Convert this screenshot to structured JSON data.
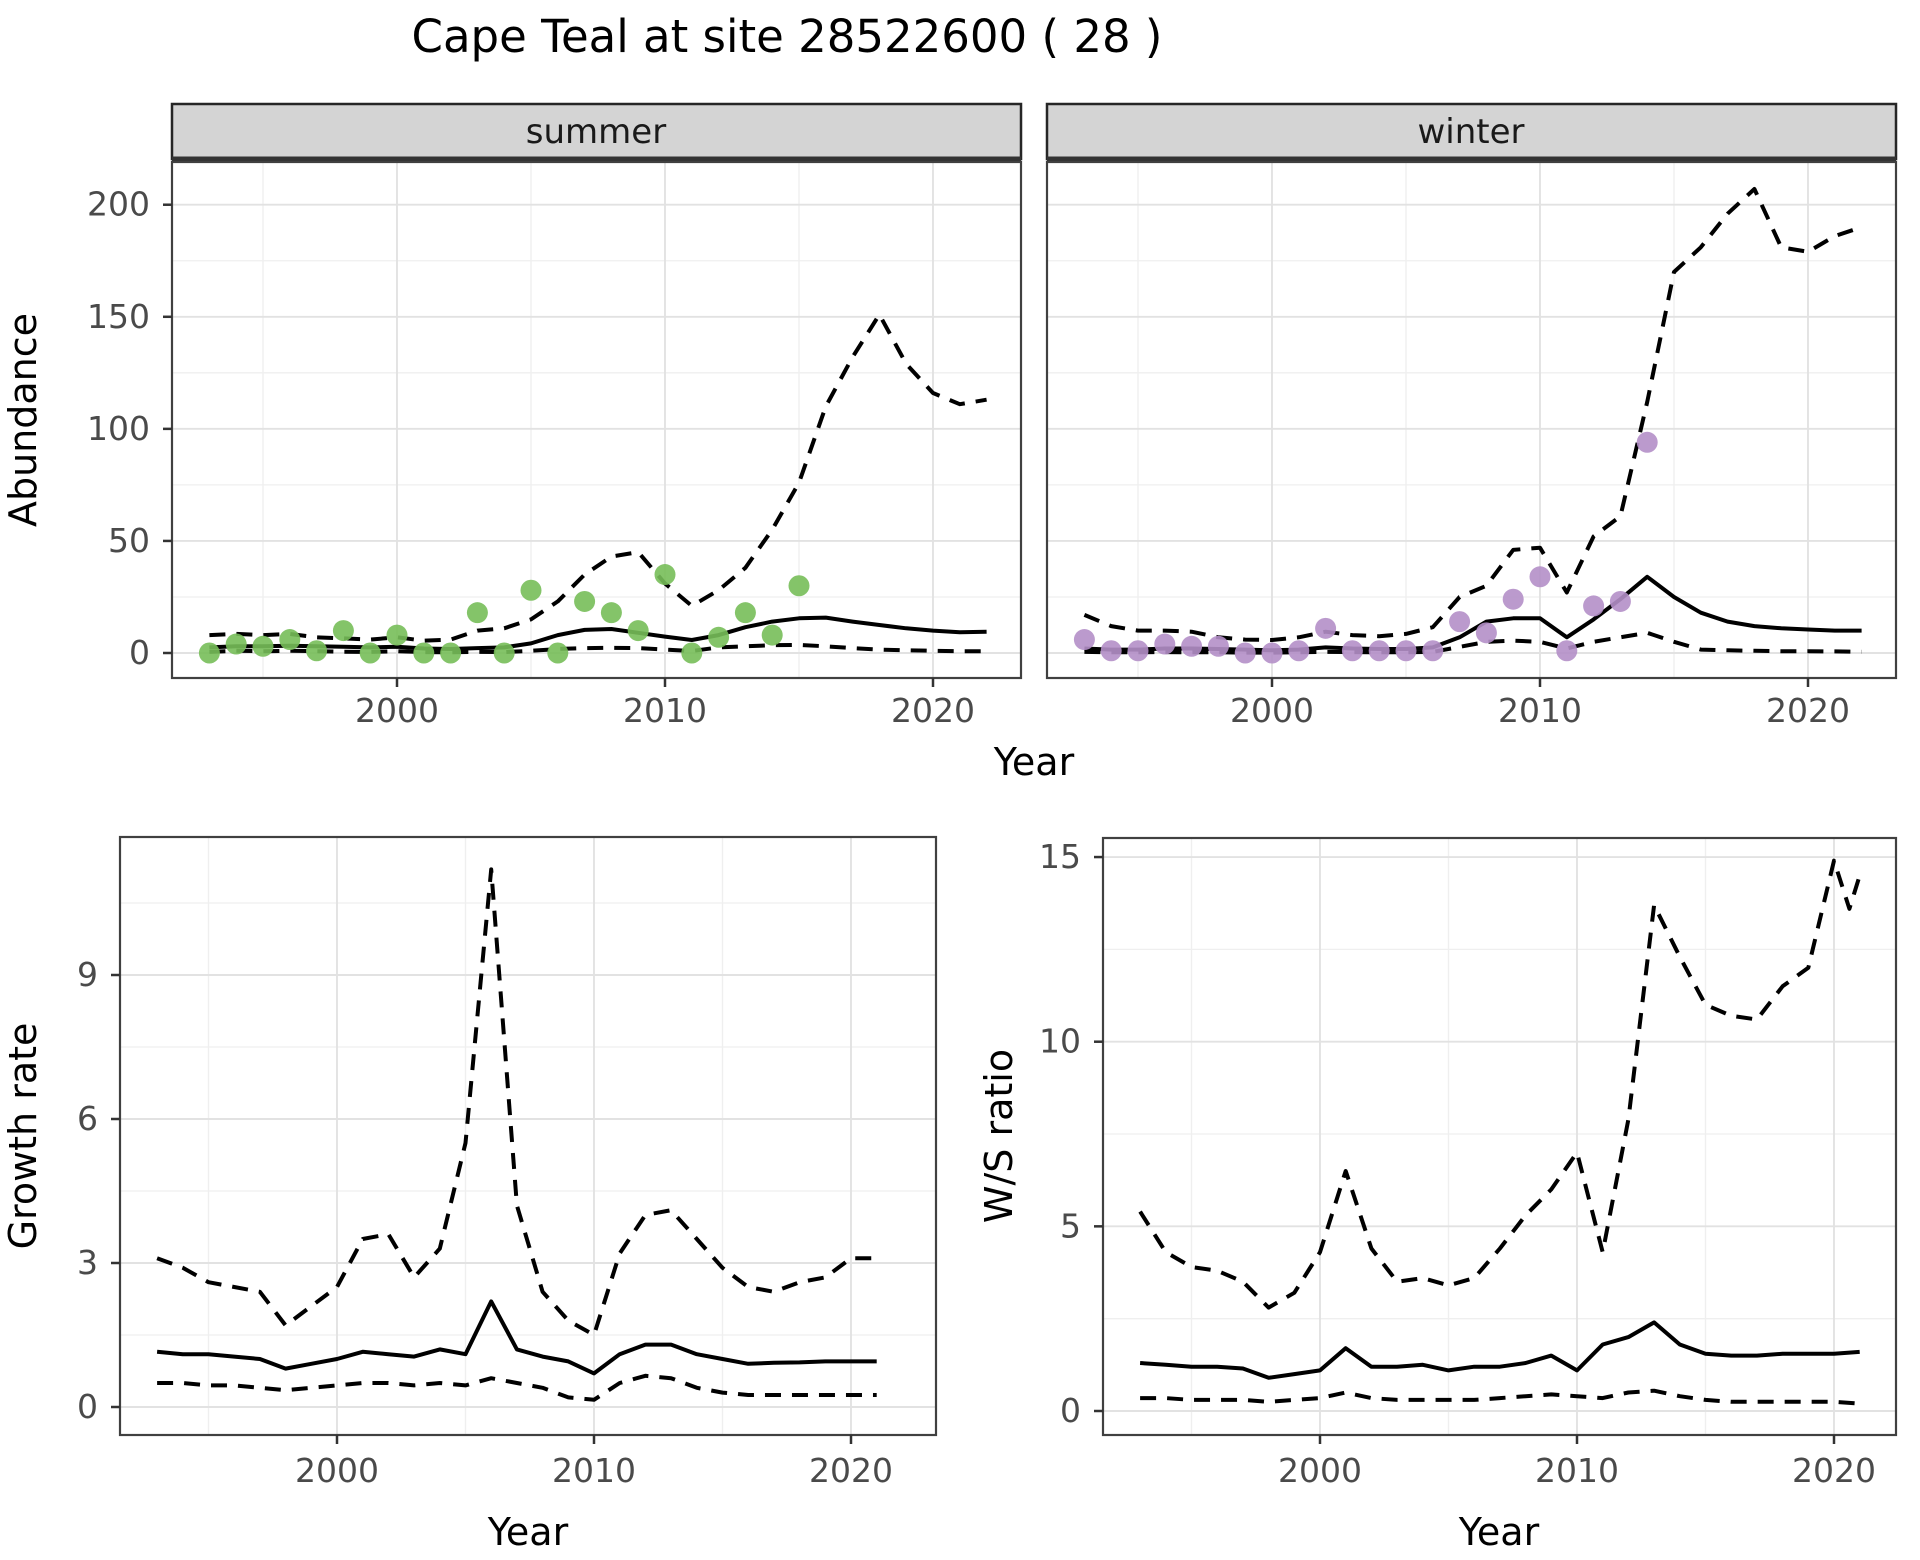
{
  "title": "Cape Teal at site 28522600 ( 28 )",
  "facet_strips": {
    "summer": "summer",
    "winter": "winter"
  },
  "axes": {
    "year_label": "Year",
    "abundance_label": "Abundance",
    "growth_label": "Growth rate",
    "ws_label": "W/S ratio"
  },
  "colors": {
    "summer_points": "#77be59",
    "winter_points": "#b48fc8",
    "line": "#000000",
    "strip_bg": "#d4d4d4",
    "grid_major": "#e2e2e2",
    "grid_minor": "#efefef"
  },
  "chart_data": [
    {
      "id": "summer",
      "type": "line",
      "facet": "summer",
      "ylabel": "Abundance",
      "xlabel": "Year",
      "x_ticks": [
        2000,
        2010,
        2020
      ],
      "x_minor": [
        1995,
        2005,
        2015
      ],
      "y_ticks": [
        0,
        50,
        100,
        150,
        200
      ],
      "y_minor": [
        25,
        75,
        125,
        175
      ],
      "ylim": [
        -11,
        219
      ],
      "series": [
        {
          "name": "lower-ci",
          "kind": "dashed",
          "x": [
            1993,
            1994,
            1995,
            1996,
            1997,
            1998,
            1999,
            2000,
            2001,
            2002,
            2003,
            2004,
            2005,
            2006,
            2007,
            2008,
            2009,
            2010,
            2011,
            2012,
            2013,
            2014,
            2015,
            2016,
            2017,
            2018,
            2019,
            2020,
            2021,
            2022
          ],
          "y": [
            0.5,
            1,
            0.8,
            1,
            0.8,
            0.6,
            0.5,
            0.8,
            0.4,
            0.3,
            0.5,
            0.4,
            1,
            1.8,
            2.2,
            2.3,
            2.2,
            1.5,
            0.9,
            2.5,
            3,
            3.5,
            3.6,
            3,
            2.2,
            1.5,
            1.2,
            1,
            0.8,
            0.8
          ]
        },
        {
          "name": "upper-ci",
          "kind": "dashed",
          "x": [
            1993,
            1994,
            1995,
            1996,
            1997,
            1998,
            1999,
            2000,
            2001,
            2002,
            2003,
            2004,
            2005,
            2006,
            2007,
            2008,
            2009,
            2010,
            2011,
            2012,
            2013,
            2014,
            2015,
            2016,
            2017,
            2018,
            2019,
            2020,
            2021,
            2022
          ],
          "y": [
            8,
            8.5,
            8,
            8.5,
            7,
            6.5,
            6,
            7,
            5.5,
            6,
            10,
            11,
            15,
            23,
            35,
            43,
            45,
            31,
            21,
            28,
            38,
            55,
            76,
            110,
            132,
            151,
            129,
            116,
            111,
            113
          ]
        },
        {
          "name": "median",
          "kind": "solid",
          "x": [
            1993,
            1994,
            1995,
            1996,
            1997,
            1998,
            1999,
            2000,
            2001,
            2002,
            2003,
            2004,
            2005,
            2006,
            2007,
            2008,
            2009,
            2010,
            2011,
            2012,
            2013,
            2014,
            2015,
            2016,
            2017,
            2018,
            2019,
            2020,
            2021,
            2022
          ],
          "y": [
            2.5,
            3,
            3,
            3.2,
            3,
            2.8,
            2.5,
            2.8,
            2,
            1.8,
            2.2,
            2.5,
            4.3,
            8,
            10.3,
            10.7,
            9,
            7.3,
            5.8,
            8,
            11.5,
            14,
            15.5,
            15.8,
            14,
            12.5,
            11,
            10,
            9.3,
            9.5
          ]
        },
        {
          "name": "observations",
          "kind": "points",
          "color": "#77be59",
          "x": [
            1993,
            1994,
            1995,
            1996,
            1997,
            1998,
            1999,
            2000,
            2001,
            2002,
            2003,
            2004,
            2005,
            2006,
            2007,
            2008,
            2009,
            2010,
            2011,
            2012,
            2013,
            2014,
            2015
          ],
          "y": [
            0,
            4,
            3,
            6,
            1,
            10,
            0,
            8,
            0,
            0,
            18,
            0,
            28,
            0,
            23,
            18,
            10,
            35,
            0,
            7,
            18,
            8,
            30
          ]
        }
      ]
    },
    {
      "id": "winter",
      "type": "line",
      "facet": "winter",
      "ylabel": "Abundance",
      "xlabel": "Year",
      "x_ticks": [
        2000,
        2010,
        2020
      ],
      "x_minor": [
        1995,
        2005,
        2015
      ],
      "y_ticks": [
        0,
        50,
        100,
        150,
        200
      ],
      "y_minor": [
        25,
        75,
        125,
        175
      ],
      "ylim": [
        -11,
        219
      ],
      "series": [
        {
          "name": "lower-ci",
          "kind": "dashed",
          "x": [
            1993,
            1994,
            1995,
            1996,
            1997,
            1998,
            1999,
            2000,
            2001,
            2002,
            2003,
            2004,
            2005,
            2006,
            2007,
            2008,
            2009,
            2010,
            2011,
            2012,
            2013,
            2014,
            2015,
            2016,
            2017,
            2018,
            2019,
            2020,
            2021,
            2022
          ],
          "y": [
            0.5,
            0.3,
            0.3,
            0.4,
            0.3,
            0.3,
            0.2,
            0.2,
            0.3,
            0.5,
            0.4,
            0.3,
            0.3,
            0.5,
            2.7,
            5,
            5.5,
            5,
            2,
            5,
            7,
            9,
            5,
            1.5,
            1.2,
            1,
            0.8,
            0.8,
            0.7,
            0.6
          ]
        },
        {
          "name": "upper-ci",
          "kind": "dashed",
          "x": [
            1993,
            1994,
            1995,
            1996,
            1997,
            1998,
            1999,
            2000,
            2001,
            2002,
            2003,
            2004,
            2005,
            2006,
            2007,
            2008,
            2009,
            2010,
            2011,
            2012,
            2013,
            2014,
            2015,
            2016,
            2017,
            2018,
            2019,
            2020,
            2021,
            2022
          ],
          "y": [
            17,
            12,
            10,
            10,
            9.5,
            7,
            6,
            5.8,
            7,
            9.5,
            8,
            7.5,
            8.5,
            11.5,
            25,
            30,
            46,
            47,
            27,
            52,
            61,
            112,
            170,
            181,
            196,
            207,
            181,
            179,
            186,
            190
          ]
        },
        {
          "name": "median",
          "kind": "solid",
          "x": [
            1993,
            1994,
            1995,
            1996,
            1997,
            1998,
            1999,
            2000,
            2001,
            2002,
            2003,
            2004,
            2005,
            2006,
            2007,
            2008,
            2009,
            2010,
            2011,
            2012,
            2013,
            2014,
            2015,
            2016,
            2017,
            2018,
            2019,
            2020,
            2021,
            2022
          ],
          "y": [
            2,
            1.5,
            1.5,
            2,
            2,
            1.8,
            1.5,
            1.2,
            1.5,
            2.5,
            2,
            1.8,
            1.8,
            2.5,
            7,
            14,
            15.5,
            15.5,
            7,
            15,
            24,
            34,
            25,
            18,
            14,
            12,
            11,
            10.5,
            10,
            10
          ]
        },
        {
          "name": "observations",
          "kind": "points",
          "color": "#b48fc8",
          "x": [
            1993,
            1994,
            1995,
            1996,
            1997,
            1998,
            1999,
            2000,
            2001,
            2002,
            2003,
            2004,
            2005,
            2006,
            2007,
            2008,
            2009,
            2010,
            2011,
            2012,
            2013,
            2014
          ],
          "y": [
            6,
            1,
            1,
            4,
            3,
            3,
            0,
            0,
            1,
            11,
            1,
            1,
            1,
            1,
            14,
            9,
            24,
            34,
            1,
            21,
            23,
            94
          ]
        }
      ]
    },
    {
      "id": "growth",
      "type": "line",
      "facet": null,
      "ylabel": "Growth rate",
      "xlabel": "Year",
      "x_ticks": [
        2000,
        2010,
        2020
      ],
      "x_minor": [
        1995,
        2005,
        2015
      ],
      "y_ticks": [
        0,
        3,
        6,
        9
      ],
      "y_minor": [
        1.5,
        4.5,
        7.5,
        10.5
      ],
      "ylim": [
        -0.6,
        11.9
      ],
      "series": [
        {
          "name": "lower-ci",
          "kind": "dashed",
          "x": [
            1993,
            1994,
            1995,
            1996,
            1997,
            1998,
            1999,
            2000,
            2001,
            2002,
            2003,
            2004,
            2005,
            2006,
            2007,
            2008,
            2009,
            2010,
            2011,
            2012,
            2013,
            2014,
            2015,
            2016,
            2017,
            2018,
            2019,
            2020,
            2021
          ],
          "y": [
            0.5,
            0.5,
            0.45,
            0.45,
            0.4,
            0.35,
            0.4,
            0.45,
            0.5,
            0.5,
            0.45,
            0.5,
            0.45,
            0.6,
            0.5,
            0.4,
            0.2,
            0.15,
            0.5,
            0.65,
            0.6,
            0.4,
            0.3,
            0.25,
            0.25,
            0.25,
            0.25,
            0.25,
            0.25
          ]
        },
        {
          "name": "upper-ci",
          "kind": "dashed",
          "x": [
            1993,
            1994,
            1995,
            1996,
            1997,
            1998,
            1999,
            2000,
            2001,
            2002,
            2003,
            2004,
            2005,
            2006,
            2007,
            2008,
            2009,
            2010,
            2011,
            2012,
            2013,
            2014,
            2015,
            2016,
            2017,
            2018,
            2019,
            2020,
            2021
          ],
          "y": [
            3.1,
            2.9,
            2.6,
            2.5,
            2.4,
            1.7,
            2.1,
            2.5,
            3.5,
            3.6,
            2.7,
            3.3,
            5.5,
            11.2,
            4.2,
            2.4,
            1.8,
            1.5,
            3.2,
            4.0,
            4.1,
            3.5,
            2.9,
            2.5,
            2.4,
            2.6,
            2.7,
            3.1,
            3.1
          ]
        },
        {
          "name": "median",
          "kind": "solid",
          "x": [
            1993,
            1994,
            1995,
            1996,
            1997,
            1998,
            1999,
            2000,
            2001,
            2002,
            2003,
            2004,
            2005,
            2006,
            2007,
            2008,
            2009,
            2010,
            2011,
            2012,
            2013,
            2014,
            2015,
            2016,
            2017,
            2018,
            2019,
            2020,
            2021
          ],
          "y": [
            1.15,
            1.1,
            1.1,
            1.05,
            1.0,
            0.8,
            0.9,
            1.0,
            1.15,
            1.1,
            1.05,
            1.2,
            1.1,
            2.2,
            1.2,
            1.05,
            0.95,
            0.7,
            1.1,
            1.3,
            1.3,
            1.1,
            1.0,
            0.9,
            0.92,
            0.93,
            0.95,
            0.95,
            0.95
          ]
        }
      ]
    },
    {
      "id": "ws",
      "type": "line",
      "facet": null,
      "ylabel": "W/S ratio",
      "xlabel": "Year",
      "x_ticks": [
        2000,
        2010,
        2020
      ],
      "x_minor": [
        1995,
        2005,
        2015
      ],
      "y_ticks": [
        0,
        5,
        10,
        15
      ],
      "y_minor": [
        2.5,
        7.5,
        12.5
      ],
      "ylim": [
        -0.65,
        15.5
      ],
      "series": [
        {
          "name": "lower-ci",
          "kind": "dashed",
          "x": [
            1993,
            1994,
            1995,
            1996,
            1997,
            1998,
            1999,
            2000,
            2001,
            2002,
            2003,
            2004,
            2005,
            2006,
            2007,
            2008,
            2009,
            2010,
            2011,
            2012,
            2013,
            2014,
            2015,
            2016,
            2017,
            2018,
            2019,
            2020,
            2021
          ],
          "y": [
            0.35,
            0.35,
            0.3,
            0.3,
            0.3,
            0.25,
            0.3,
            0.35,
            0.5,
            0.35,
            0.3,
            0.3,
            0.3,
            0.3,
            0.35,
            0.4,
            0.45,
            0.4,
            0.35,
            0.5,
            0.55,
            0.4,
            0.3,
            0.25,
            0.25,
            0.25,
            0.25,
            0.25,
            0.2
          ]
        },
        {
          "name": "upper-ci",
          "kind": "dashed",
          "x": [
            1993,
            1994,
            1995,
            1996,
            1997,
            1998,
            1999,
            2000,
            2001,
            2002,
            2003,
            2004,
            2005,
            2006,
            2007,
            2008,
            2009,
            2010,
            2011,
            2012,
            2013,
            2014,
            2015,
            2016,
            2017,
            2018,
            2019,
            2020,
            2020.6,
            2021
          ],
          "y": [
            5.4,
            4.3,
            3.9,
            3.8,
            3.5,
            2.8,
            3.2,
            4.3,
            6.5,
            4.4,
            3.5,
            3.6,
            3.4,
            3.6,
            4.4,
            5.3,
            6.0,
            7.0,
            4.3,
            7.9,
            13.7,
            12.3,
            11.0,
            10.7,
            10.6,
            11.5,
            12.0,
            14.9,
            13.6,
            14.5
          ]
        },
        {
          "name": "median",
          "kind": "solid",
          "x": [
            1993,
            1994,
            1995,
            1996,
            1997,
            1998,
            1999,
            2000,
            2001,
            2002,
            2003,
            2004,
            2005,
            2006,
            2007,
            2008,
            2009,
            2010,
            2011,
            2012,
            2013,
            2014,
            2015,
            2016,
            2017,
            2018,
            2019,
            2020,
            2021
          ],
          "y": [
            1.3,
            1.25,
            1.2,
            1.2,
            1.15,
            0.9,
            1.0,
            1.1,
            1.7,
            1.2,
            1.2,
            1.25,
            1.1,
            1.2,
            1.2,
            1.3,
            1.5,
            1.1,
            1.8,
            2.0,
            2.4,
            1.8,
            1.55,
            1.5,
            1.5,
            1.55,
            1.55,
            1.55,
            1.6
          ]
        }
      ]
    }
  ]
}
